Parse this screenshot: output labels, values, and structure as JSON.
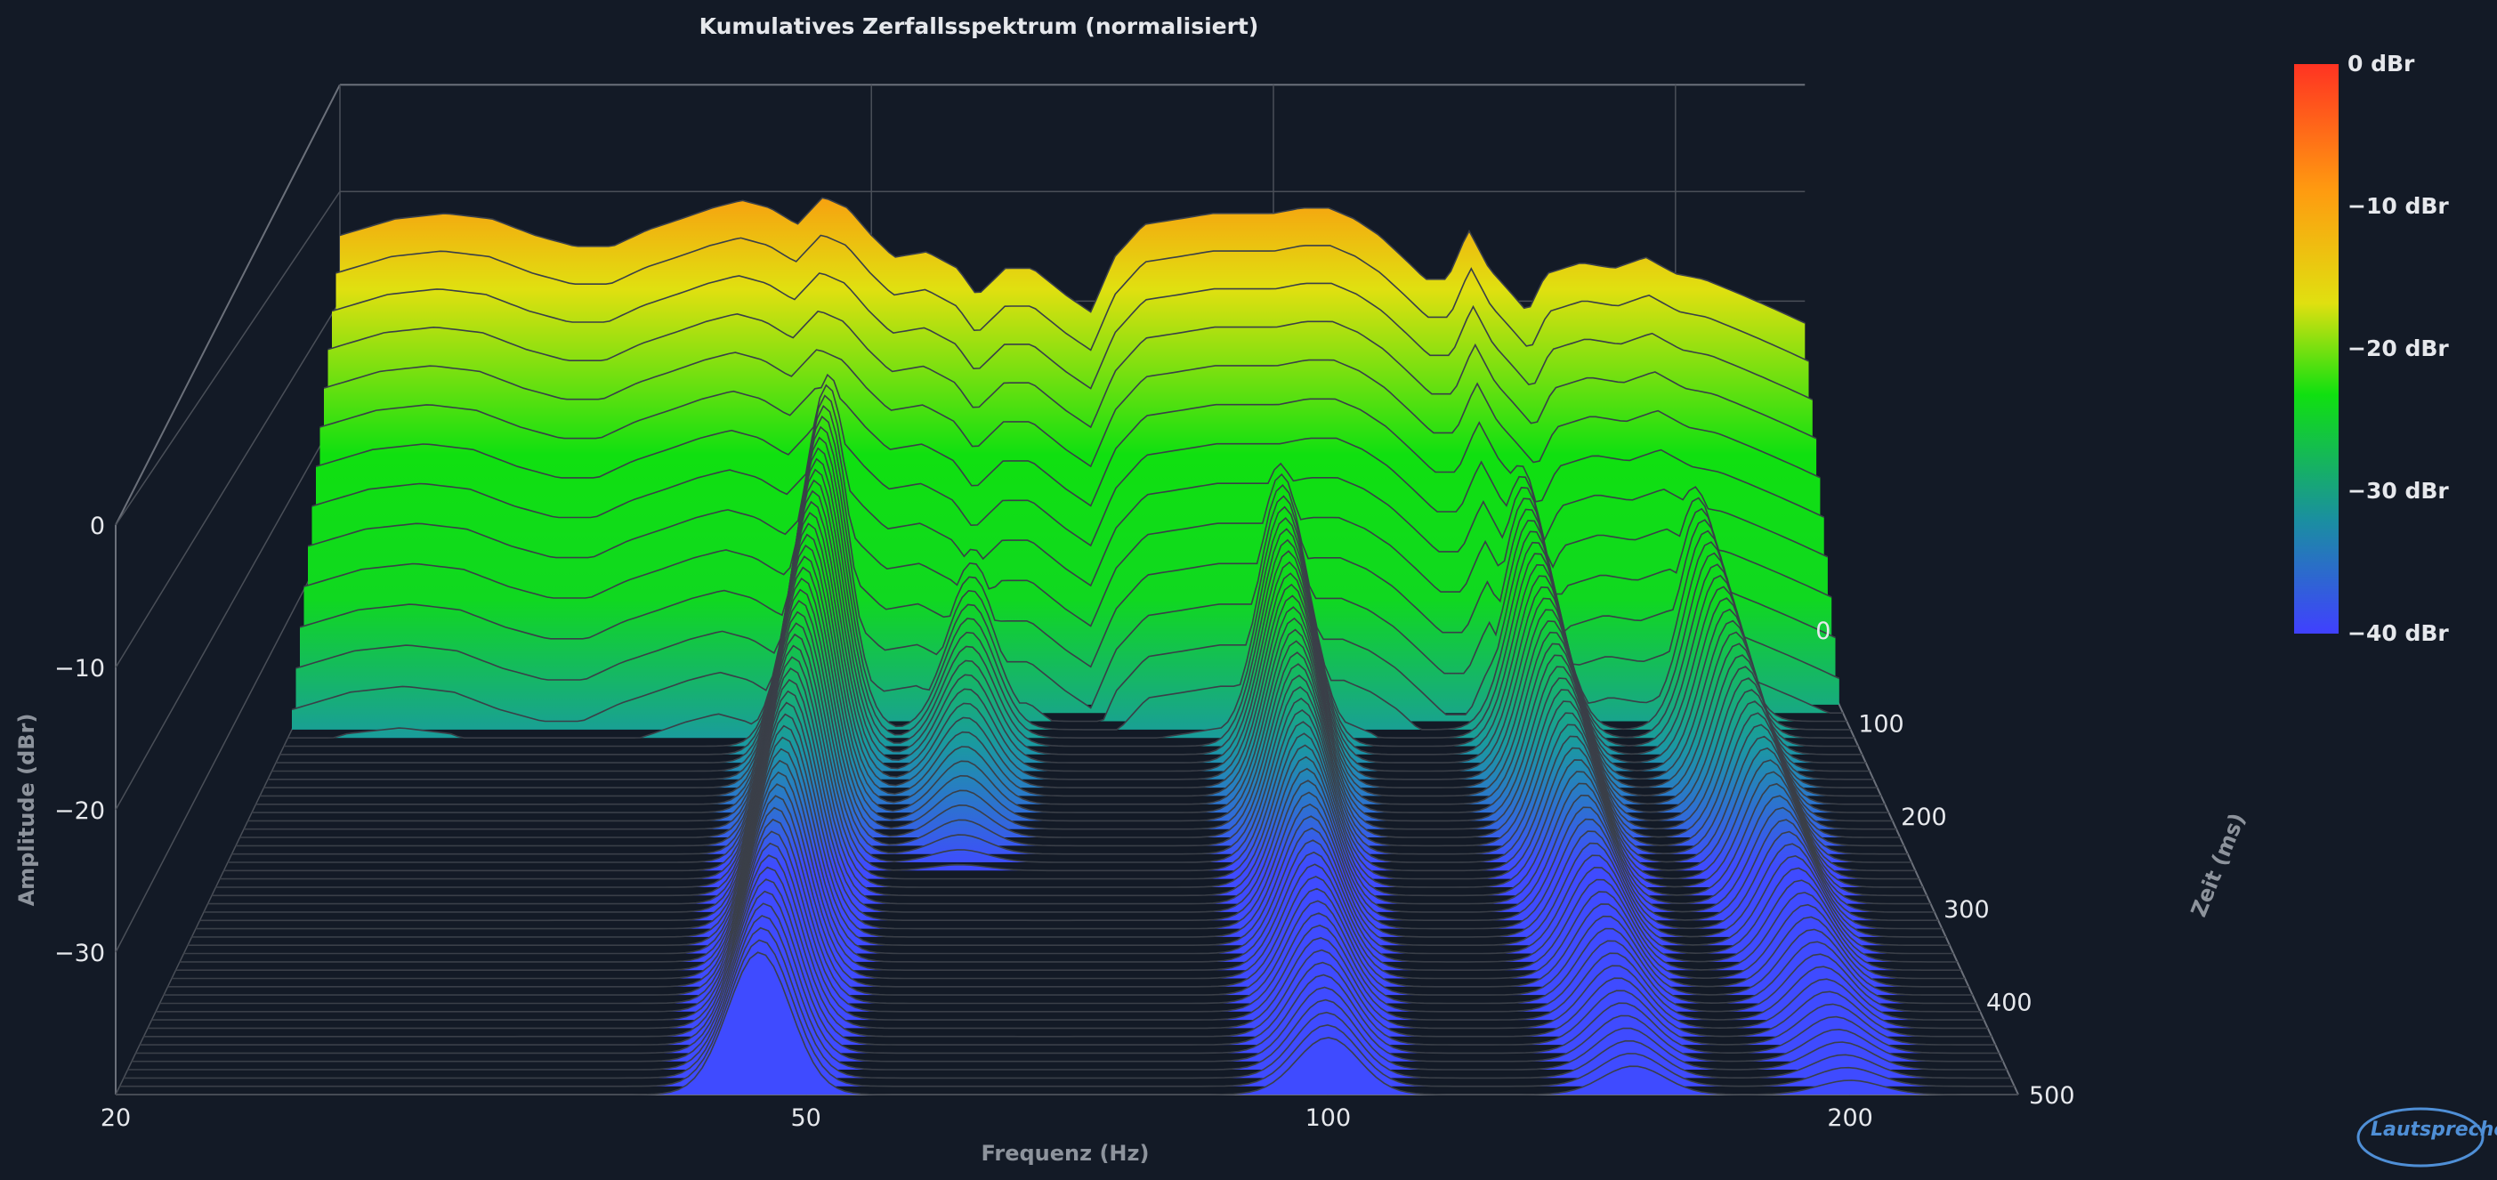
{
  "chart_data": {
    "type": "waterfall",
    "title": "Kumulatives Zerfallsspektrum (normalisiert)",
    "xlabel": "Frequenz (Hz)",
    "ylabel": "Amplitude (dBr)",
    "zlabel": "Zeit (ms)",
    "x_scale": "log",
    "xlim": [
      20,
      250
    ],
    "ylim": [
      -40,
      0
    ],
    "zlim": [
      0,
      500
    ],
    "x_ticks": [
      "20",
      "50",
      "100",
      "200"
    ],
    "x_tick_values": [
      20,
      50,
      100,
      200
    ],
    "y_ticks": [
      "0",
      "−10",
      "−20",
      "−30"
    ],
    "y_tick_values": [
      0,
      -10,
      -20,
      -30
    ],
    "z_ticks": [
      "0",
      "100",
      "200",
      "300",
      "400",
      "500"
    ],
    "z_tick_values": [
      0,
      100,
      200,
      300,
      400,
      500
    ],
    "colorbar": {
      "labels": [
        "0 dBr",
        "−10 dBr",
        "−20 dBr",
        "−30 dBr",
        "−40 dBr"
      ],
      "values": [
        0,
        -10,
        -20,
        -30,
        -40
      ],
      "colors": [
        "#ff3322",
        "#ff9a10",
        "#e0e010",
        "#10e010",
        "#1a8fa0",
        "#4040ff"
      ]
    },
    "initial_response": {
      "x": [
        20,
        22,
        24,
        26,
        28,
        30,
        32,
        34,
        36,
        38,
        40,
        42,
        44,
        46,
        48,
        50,
        52,
        55,
        58,
        60,
        63,
        66,
        70,
        73,
        76,
        80,
        85,
        90,
        95,
        100,
        105,
        110,
        115,
        120,
        125,
        130,
        135,
        140,
        145,
        150,
        155,
        160,
        170,
        180,
        190,
        200,
        210,
        220,
        230,
        240,
        250
      ],
      "y": [
        -4,
        -2.5,
        -2,
        -2.5,
        -4,
        -5,
        -5,
        -3.5,
        -2.5,
        -1.5,
        -0.8,
        -1.5,
        -3,
        -0.5,
        -1.5,
        -4,
        -6,
        -5.5,
        -7,
        -9.5,
        -7,
        -7,
        -9.5,
        -11,
        -6,
        -3,
        -2.5,
        -2,
        -2,
        -2,
        -1.5,
        -1.5,
        -2.5,
        -4,
        -6,
        -8,
        -8,
        -3.5,
        -7,
        -9,
        -11,
        -7.5,
        -6.5,
        -7,
        -6,
        -7.5,
        -8,
        -9,
        -10,
        -11,
        -12
      ]
    },
    "resonances": [
      {
        "freq_hz": 47,
        "decay_ms": 500,
        "level_dBr": -12
      },
      {
        "freq_hz": 60,
        "decay_ms": 300,
        "level_dBr": -24
      },
      {
        "freq_hz": 100,
        "decay_ms": 500,
        "level_dBr": -18
      },
      {
        "freq_hz": 150,
        "decay_ms": 500,
        "level_dBr": -20
      },
      {
        "freq_hz": 200,
        "decay_ms": 500,
        "level_dBr": -21
      }
    ]
  },
  "logo": {
    "text": "Lautsprecher Forum.eu"
  }
}
